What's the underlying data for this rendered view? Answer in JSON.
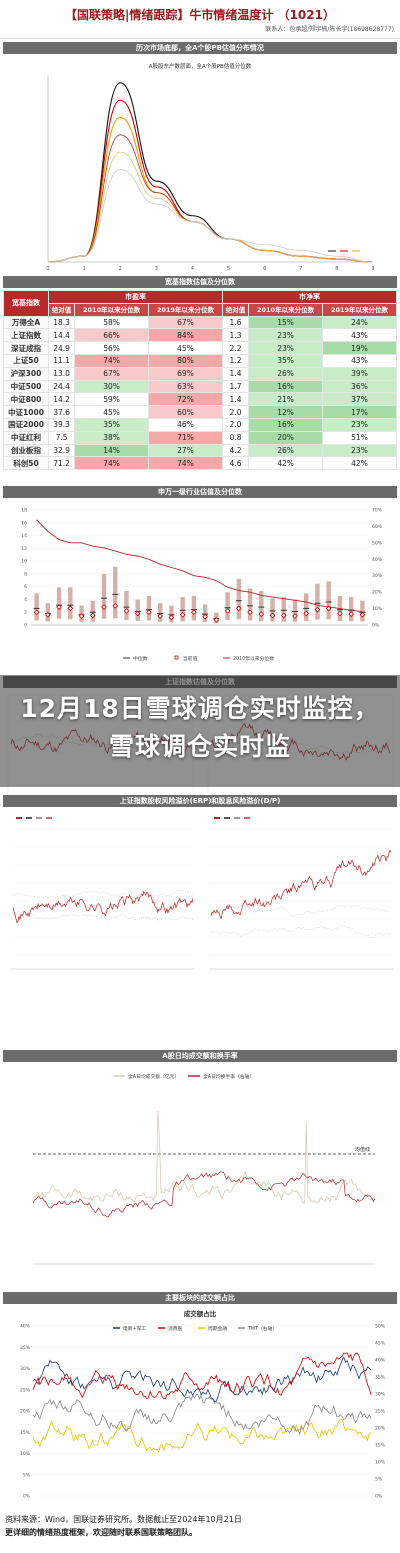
{
  "header": {
    "title": "【国联策略|情绪跟踪】牛市情绪温度计 （1021）",
    "authors": "联系人：包承超/郑宇楠/陈长宇(18698628777)"
  },
  "sections": {
    "pb": "历次市场底部，全A个股PB估值分布情况",
    "table": "宽基指数估值及分位数",
    "sw": "申万一级行业估值及分位数",
    "sh": "上证指数估值及分位数",
    "erp": "上证指数股权风险溢价(ERP)和股息风险溢价(D/P)",
    "turnover": "A股日均成交额和换手率",
    "share": "主要板块的成交额占比"
  },
  "overlay": {
    "text": "12月18日雪球调仓实时监控，雪球调仓实时监"
  },
  "pb_chart": {
    "subtitle": "A股股东户数层面，全A个股PB估值分位数",
    "x_ticks": [
      "0",
      "1",
      "2",
      "3",
      "4",
      "5",
      "6",
      "7",
      "8",
      "9"
    ]
  },
  "table": {
    "col_group_pe": "市盈率",
    "col_group_pb": "市净率",
    "col_index": "宽基指数",
    "col_abs": "绝对值",
    "col_2010": "2010年以来分位数",
    "col_2019": "2019年以来分位数",
    "rows": [
      {
        "name": "万得全A",
        "pe": "18.3",
        "pe10": "58%",
        "pe19": "67%",
        "pb": "1.6",
        "pb10": "15%",
        "pb19": "24%"
      },
      {
        "name": "上证指数",
        "pe": "14.4",
        "pe10": "66%",
        "pe19": "84%",
        "pb": "1.3",
        "pb10": "23%",
        "pb19": "43%"
      },
      {
        "name": "深证成指",
        "pe": "24.9",
        "pe10": "56%",
        "pe19": "45%",
        "pb": "2.2",
        "pb10": "23%",
        "pb19": "19%"
      },
      {
        "name": "上证50",
        "pe": "11.1",
        "pe10": "74%",
        "pe19": "80%",
        "pb": "1.2",
        "pb10": "35%",
        "pb19": "43%"
      },
      {
        "name": "沪深300",
        "pe": "13.0",
        "pe10": "67%",
        "pe19": "69%",
        "pb": "1.4",
        "pb10": "26%",
        "pb19": "39%"
      },
      {
        "name": "中证500",
        "pe": "24.4",
        "pe10": "30%",
        "pe19": "63%",
        "pb": "1.7",
        "pb10": "16%",
        "pb19": "36%"
      },
      {
        "name": "中证800",
        "pe": "14.2",
        "pe10": "59%",
        "pe19": "72%",
        "pb": "1.4",
        "pb10": "21%",
        "pb19": "37%"
      },
      {
        "name": "中证1000",
        "pe": "37.6",
        "pe10": "45%",
        "pe19": "60%",
        "pb": "2.0",
        "pb10": "12%",
        "pb19": "17%"
      },
      {
        "name": "国证2000",
        "pe": "39.3",
        "pe10": "35%",
        "pe19": "46%",
        "pb": "2.0",
        "pb10": "16%",
        "pb19": "23%"
      },
      {
        "name": "中证红利",
        "pe": "7.5",
        "pe10": "38%",
        "pe19": "71%",
        "pb": "0.8",
        "pb10": "20%",
        "pb19": "51%"
      },
      {
        "name": "创业板指",
        "pe": "32.9",
        "pe10": "14%",
        "pe19": "27%",
        "pb": "4.2",
        "pb10": "26%",
        "pb19": "23%"
      },
      {
        "name": "科创50",
        "pe": "71.2",
        "pe10": "74%",
        "pe19": "74%",
        "pb": "4.6",
        "pb10": "42%",
        "pb19": "42%"
      }
    ]
  },
  "sw_chart": {
    "legend": [
      "中位数",
      "当前值",
      "2010年以来分位数"
    ],
    "y_left": [
      "0",
      "2",
      "4",
      "6",
      "8",
      "10",
      "12",
      "14",
      "16",
      "18"
    ],
    "y_right": [
      "0%",
      "10%",
      "20%",
      "30%",
      "40%",
      "50%",
      "60%",
      "70%"
    ]
  },
  "turnover_chart": {
    "legend": [
      "全A日均成交额（亿元）",
      "全A日均换手率（右轴）"
    ],
    "ref_label": "均值线"
  },
  "share_chart": {
    "sub": "成交额占比",
    "legend": [
      "电新+军工",
      "消费医",
      "周期金融",
      "TMT（右轴）"
    ],
    "y_left": [
      "0%",
      "5%",
      "10%",
      "15%",
      "20%",
      "25%",
      "30%",
      "35%",
      "40%"
    ],
    "y_right": [
      "0%",
      "5%",
      "10%",
      "15%",
      "20%",
      "25%",
      "30%",
      "35%",
      "40%",
      "45%",
      "50%"
    ]
  },
  "footer": {
    "source": "资料来源：Wind，国联证券研究所。数据截止至2024年10月21日",
    "note": "更详细的情绪热度框架，欢迎随时联系国联策略团队。"
  },
  "colors": {
    "red_high": "#f4a8a8",
    "red_mid": "#f8c9c9",
    "green_low": "#a6dca6",
    "green_mid": "#c8ebc8",
    "header_red": "#b82a2a",
    "bar_gray": "#6b6b6b"
  },
  "chart_data": [
    {
      "type": "line",
      "title": "历次市场底部，全A个股PB估值分布情况",
      "subtitle": "A股股东户数层面，全A个股PB估值分位数",
      "x": [
        0,
        1,
        2,
        3,
        4,
        5,
        6,
        7,
        8,
        9
      ],
      "series": [
        {
          "values": [
            0,
            1,
            31,
            14,
            8,
            4,
            2,
            1,
            0.5,
            0
          ]
        },
        {
          "values": [
            0,
            1,
            28,
            13,
            7,
            4,
            2,
            1,
            0.5,
            0
          ]
        },
        {
          "values": [
            0,
            1,
            25,
            12,
            7,
            4,
            2,
            1,
            0.5,
            0
          ]
        },
        {
          "values": [
            0,
            1,
            22,
            12,
            7,
            4,
            2,
            1,
            0.5,
            0
          ]
        },
        {
          "values": [
            0,
            1,
            19,
            11,
            7,
            4,
            2,
            1,
            0.5,
            0
          ]
        },
        {
          "values": [
            0,
            1,
            16,
            10,
            7,
            4,
            3,
            2,
            1,
            0
          ]
        }
      ]
    },
    {
      "type": "bar",
      "title": "申万一级行业估值及分位数",
      "series": [
        {
          "name": "中位数",
          "values": [
            2.6,
            1.8,
            3.1,
            3.1,
            1.6,
            2.0,
            4.2,
            4.8,
            2.8,
            2.1,
            2.4,
            1.8,
            1.6,
            2.3,
            2.4,
            1.7,
            1.0,
            2.7,
            3.8,
            3.0,
            2.8,
            2.2,
            2.3,
            2.1,
            2.6,
            3.4,
            3.6,
            2.4,
            2.3,
            2.0
          ]
        },
        {
          "name": "当前值",
          "values": [
            2.0,
            1.6,
            2.8,
            2.6,
            1.4,
            1.5,
            2.8,
            3.0,
            2.2,
            1.8,
            2.0,
            1.4,
            1.2,
            1.6,
            2.0,
            1.3,
            0.8,
            2.2,
            2.6,
            2.0,
            1.7,
            1.5,
            1.5,
            1.4,
            1.8,
            2.4,
            2.6,
            1.8,
            1.7,
            1.6
          ]
        },
        {
          "name": "2010年以来分位数",
          "values": [
            0.64,
            0.57,
            0.52,
            0.5,
            0.5,
            0.48,
            0.47,
            0.45,
            0.43,
            0.42,
            0.4,
            0.37,
            0.35,
            0.33,
            0.3,
            0.29,
            0.27,
            0.23,
            0.21,
            0.2,
            0.18,
            0.17,
            0.16,
            0.15,
            0.14,
            0.12,
            0.11,
            0.1,
            0.09,
            0.08
          ]
        }
      ]
    },
    {
      "type": "table",
      "title": "宽基指数估值及分位数",
      "columns": [
        "宽基指数",
        "绝对值",
        "2010年以来分位数",
        "2019年以来分位数",
        "绝对值",
        "2010年以来分位数",
        "2019年以来分位数"
      ]
    }
  ]
}
